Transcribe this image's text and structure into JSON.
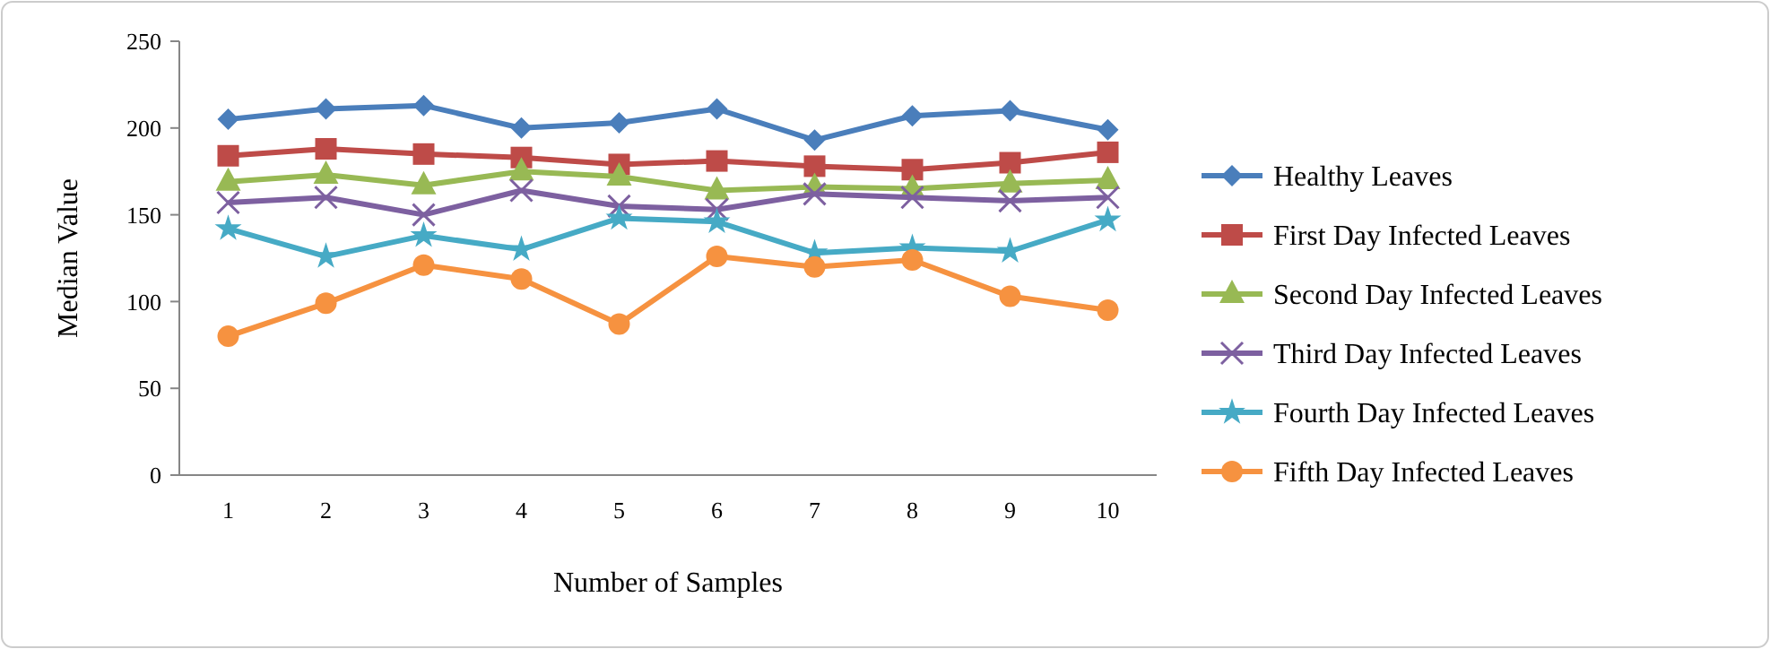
{
  "chart_data": {
    "type": "line",
    "xlabel": "Number of Samples",
    "ylabel": "Median Value",
    "categories": [
      "1",
      "2",
      "3",
      "4",
      "5",
      "6",
      "7",
      "8",
      "9",
      "10"
    ],
    "ylim": [
      0,
      250
    ],
    "yticks": [
      0,
      50,
      100,
      150,
      200,
      250
    ],
    "grid": false,
    "legend": "right",
    "series": [
      {
        "name": "Healthy Leaves",
        "color": "#4a7ebb",
        "marker": "diamond",
        "values": [
          205,
          211,
          213,
          200,
          203,
          211,
          193,
          207,
          210,
          199
        ]
      },
      {
        "name": "First Day Infected Leaves",
        "color": "#be4b48",
        "marker": "square",
        "values": [
          184,
          188,
          185,
          183,
          179,
          181,
          178,
          176,
          180,
          186
        ]
      },
      {
        "name": "Second Day Infected Leaves",
        "color": "#98b954",
        "marker": "triangle",
        "values": [
          169,
          173,
          167,
          175,
          172,
          164,
          166,
          165,
          168,
          170
        ]
      },
      {
        "name": "Third Day Infected Leaves",
        "color": "#7d60a0",
        "marker": "cross",
        "values": [
          157,
          160,
          150,
          164,
          155,
          153,
          162,
          160,
          158,
          160
        ]
      },
      {
        "name": "Fourth Day Infected Leaves",
        "color": "#46aac5",
        "marker": "star",
        "values": [
          142,
          126,
          138,
          130,
          148,
          146,
          128,
          131,
          129,
          147
        ]
      },
      {
        "name": "Fifth Day Infected Leaves",
        "color": "#f69240",
        "marker": "circle",
        "values": [
          80,
          99,
          121,
          113,
          87,
          126,
          120,
          124,
          103,
          95
        ]
      }
    ]
  }
}
